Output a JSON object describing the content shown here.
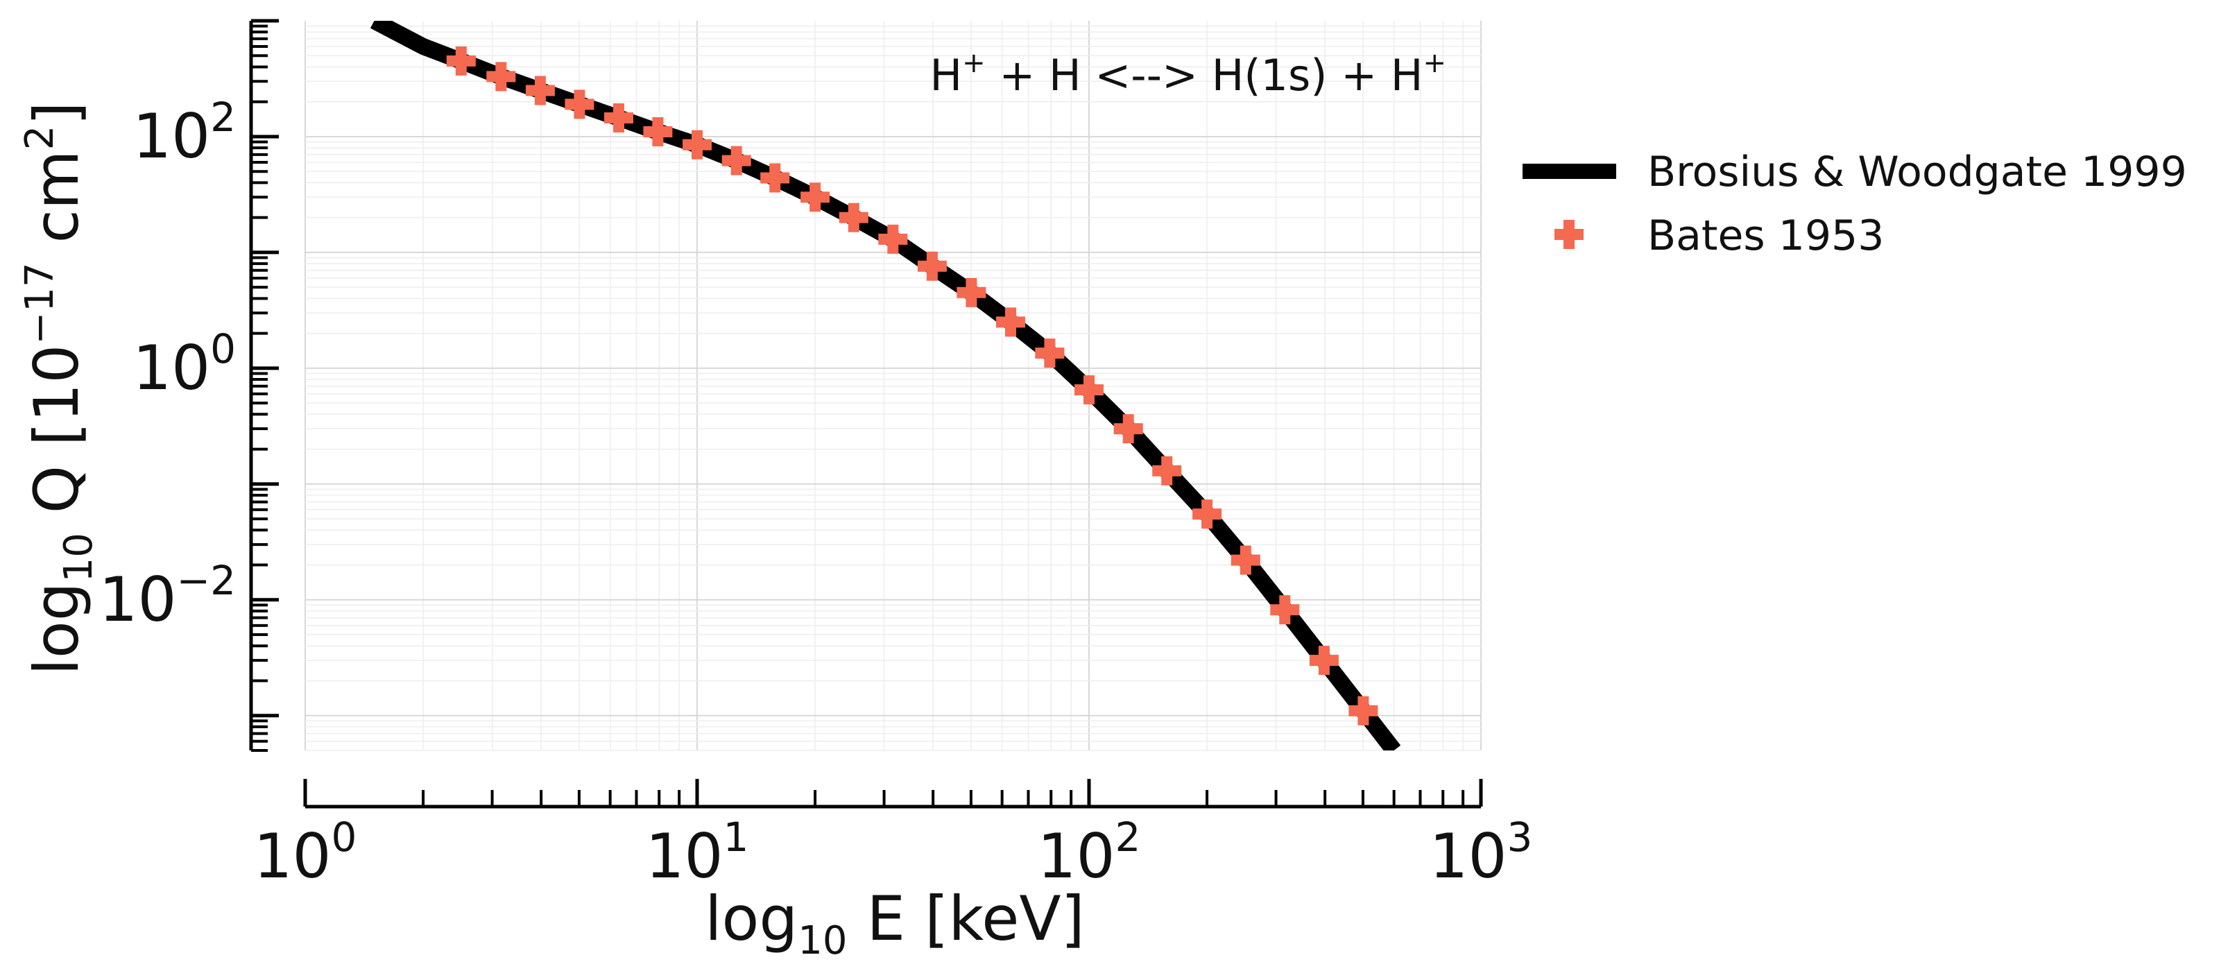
{
  "chart_data": {
    "type": "line",
    "annotation": {
      "reactant_1": "H",
      "reactant_1_charge": "+",
      "plus_1": "+",
      "reactant_2": "H",
      "arrow": "<-->",
      "product_1": "H(1s)",
      "plus_2": "+",
      "product_2": "H",
      "product_2_charge": "+"
    },
    "xlabel": {
      "prefix": "log",
      "sub": "10",
      "main": " E [keV]"
    },
    "ylabel": {
      "prefix": "log",
      "sub": "10",
      "main": " Q [10",
      "exp": "−17",
      "unit": " cm",
      "unit_exp": "2",
      "close": "]"
    },
    "x_scale": "log",
    "y_scale": "log",
    "xlim": [
      1,
      1000
    ],
    "ylim": [
      0.0005,
      1000
    ],
    "x_ticks": [
      {
        "base": "10",
        "exp": "0",
        "value": 1
      },
      {
        "base": "10",
        "exp": "1",
        "value": 10
      },
      {
        "base": "10",
        "exp": "2",
        "value": 100
      },
      {
        "base": "10",
        "exp": "3",
        "value": 1000
      }
    ],
    "y_ticks": [
      {
        "base": "10",
        "exp": "2",
        "value": 100
      },
      {
        "base": "10",
        "exp": "0",
        "value": 1
      },
      {
        "base": "10",
        "exp": "−2",
        "value": 0.01
      }
    ],
    "grid": true,
    "legend_position": "outside-right",
    "series": [
      {
        "name": "Brosius & Woodgate 1999",
        "style": "line",
        "color": "#000000",
        "x": [
          1.5,
          2,
          2.5,
          3.16,
          3.98,
          5.01,
          6.31,
          7.94,
          10,
          12.6,
          15.8,
          20,
          25.1,
          31.6,
          39.8,
          50.1,
          63.1,
          79.4,
          100,
          126,
          158,
          200,
          251,
          316,
          398,
          501,
          600
        ],
        "y": [
          1000,
          600,
          450,
          330,
          250,
          190,
          145,
          110,
          85,
          62,
          44,
          30,
          20,
          13,
          7.6,
          4.5,
          2.5,
          1.35,
          0.65,
          0.3,
          0.13,
          0.055,
          0.022,
          0.0082,
          0.003,
          0.0011,
          0.0005
        ]
      },
      {
        "name": "Bates 1953",
        "style": "marker",
        "marker": "plus",
        "color": "#f4694f",
        "x": [
          2.5,
          3.16,
          3.98,
          5.01,
          6.31,
          7.94,
          10,
          12.6,
          15.8,
          20,
          25.1,
          31.6,
          39.8,
          50.1,
          63.1,
          79.4,
          100,
          126,
          158,
          200,
          251,
          316,
          398,
          501
        ],
        "y": [
          450,
          330,
          250,
          190,
          145,
          110,
          85,
          62,
          44,
          30,
          20,
          13,
          7.6,
          4.5,
          2.5,
          1.35,
          0.65,
          0.3,
          0.13,
          0.055,
          0.022,
          0.0082,
          0.003,
          0.0011
        ]
      }
    ]
  }
}
